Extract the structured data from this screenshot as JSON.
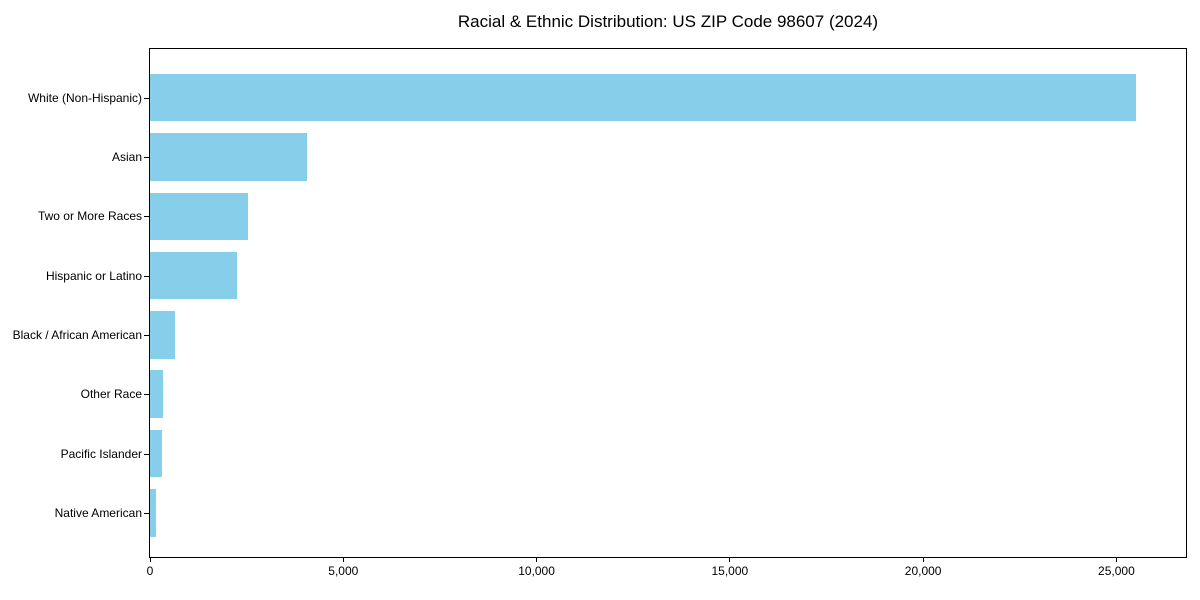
{
  "title": "Racial & Ethnic Distribution: US ZIP Code 98607 (2024)",
  "chart_data": {
    "type": "bar",
    "orientation": "horizontal",
    "title": "Racial & Ethnic Distribution: US ZIP Code 98607 (2024)",
    "categories": [
      "White (Non-Hispanic)",
      "Asian",
      "Two or More Races",
      "Hispanic or Latino",
      "Black / African American",
      "Other Race",
      "Pacific Islander",
      "Native American"
    ],
    "values": [
      25500,
      4050,
      2530,
      2250,
      650,
      330,
      310,
      160
    ],
    "xlabel": "",
    "ylabel": "",
    "xlim": [
      0,
      26800
    ],
    "xticks": [
      0,
      5000,
      10000,
      15000,
      20000,
      25000
    ],
    "xtick_labels": [
      "0",
      "5,000",
      "10,000",
      "15,000",
      "20,000",
      "25,000"
    ],
    "grid": false,
    "legend": false,
    "bar_color": "#87CEEB",
    "axis_color": "#000000",
    "background_color": "#FFFFFF"
  }
}
